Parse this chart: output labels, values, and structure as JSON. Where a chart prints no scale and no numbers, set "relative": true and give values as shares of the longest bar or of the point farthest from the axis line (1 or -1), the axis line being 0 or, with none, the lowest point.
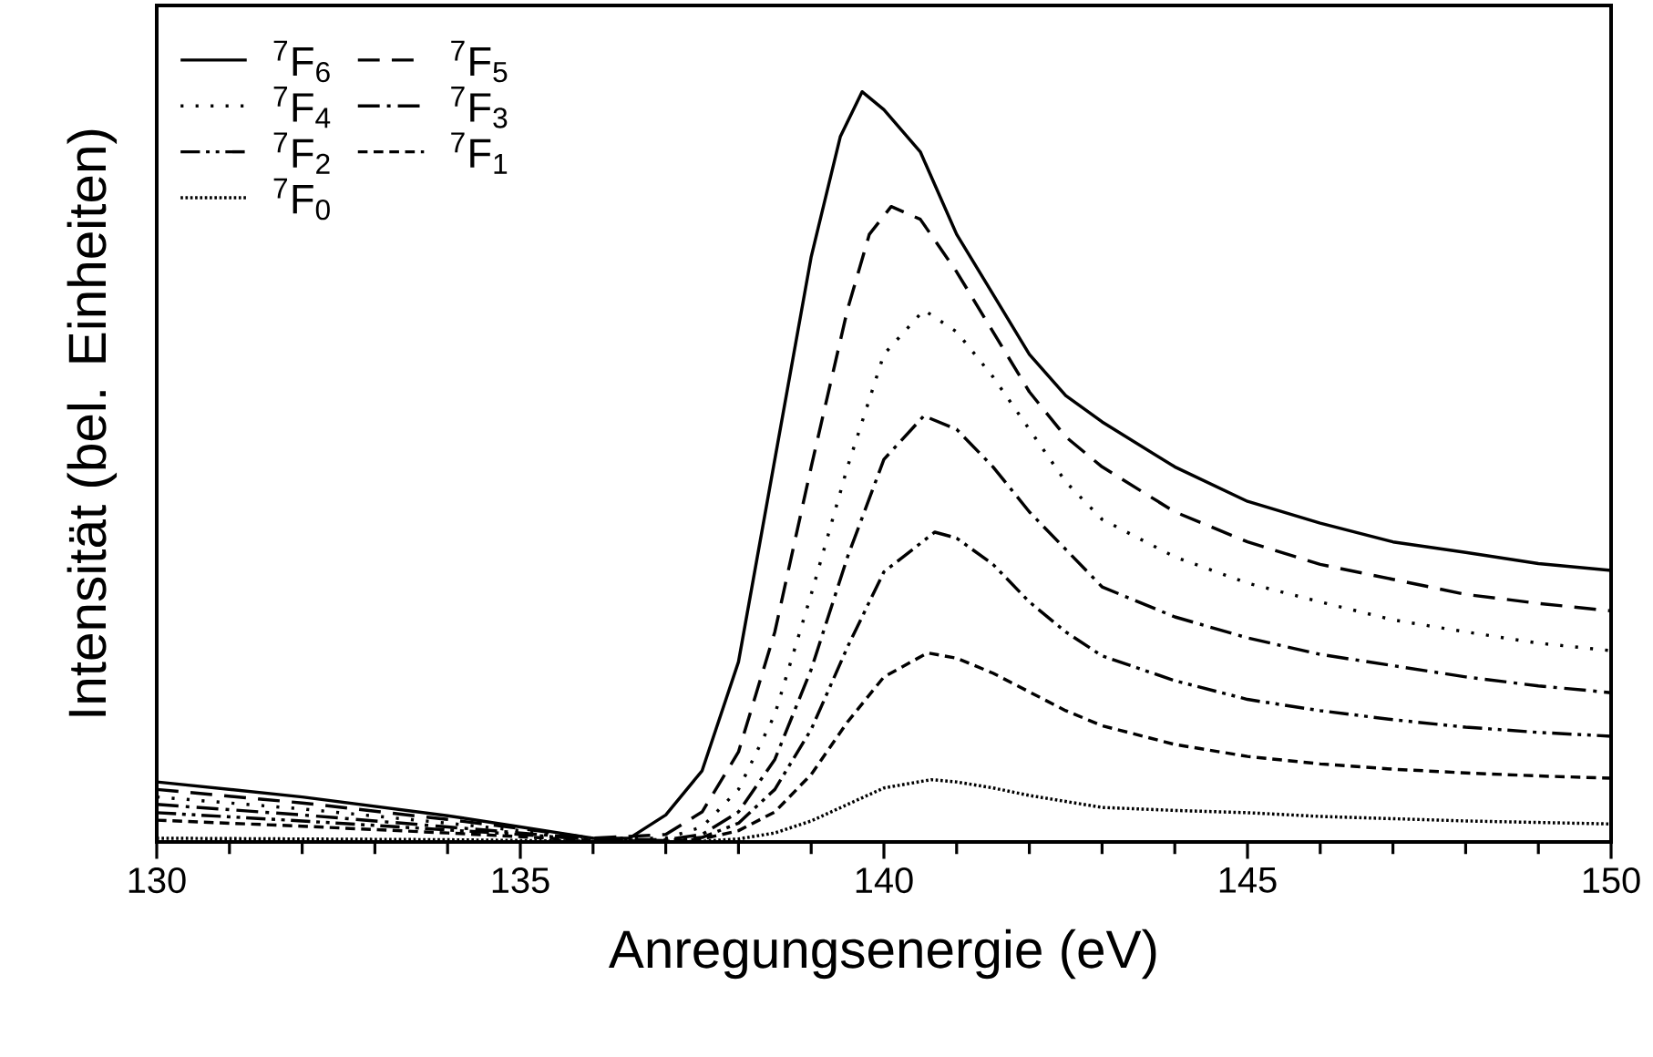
{
  "chart_data": {
    "type": "line",
    "relative": true,
    "xlabel": "Anregungsenergie (eV)",
    "ylabel": "Intensität (bel. Einheiten)",
    "xlim": [
      130,
      150
    ],
    "xticks": [
      130,
      135,
      140,
      145,
      150
    ],
    "legend": "top left",
    "grid": false,
    "marker": "none",
    "series": [
      {
        "name": "$^{7}$F$_{6}$",
        "color": "#000000",
        "line_style": "solid",
        "x": [
          130,
          132,
          134,
          135,
          136,
          136.5,
          137,
          137.5,
          138,
          138.5,
          139,
          139.4,
          139.7,
          140,
          140.5,
          141,
          141.5,
          142,
          142.5,
          143,
          144,
          145,
          146,
          147,
          148,
          149,
          150
        ],
        "values": [
          0.08,
          0.06,
          0.035,
          0.02,
          0.005,
          0.005,
          0.036,
          0.095,
          0.24,
          0.51,
          0.78,
          0.94,
          1.0,
          0.976,
          0.92,
          0.81,
          0.73,
          0.65,
          0.595,
          0.56,
          0.5,
          0.454,
          0.425,
          0.4,
          0.386,
          0.371,
          0.362
        ]
      },
      {
        "name": "$^{7}$F$_{5}$",
        "color": "#000000",
        "line_style": "dashed",
        "x": [
          130,
          132,
          134,
          135,
          136,
          137,
          137.5,
          138,
          138.5,
          139,
          139.5,
          139.8,
          140.1,
          140.5,
          141,
          141.5,
          142,
          142.5,
          143,
          144,
          145,
          146,
          147,
          148,
          149,
          150
        ],
        "values": [
          0.07,
          0.052,
          0.03,
          0.018,
          0.005,
          0.01,
          0.04,
          0.12,
          0.28,
          0.5,
          0.71,
          0.81,
          0.847,
          0.83,
          0.76,
          0.68,
          0.6,
          0.54,
          0.5,
          0.44,
          0.4,
          0.37,
          0.35,
          0.33,
          0.318,
          0.308
        ]
      },
      {
        "name": "$^{7}$F$_{4}$",
        "color": "#000000",
        "line_style": "dotted",
        "x": [
          130,
          132,
          134,
          135,
          136,
          137,
          137.5,
          138,
          138.5,
          139,
          139.5,
          140,
          140.55,
          141,
          141.5,
          142,
          142.5,
          143,
          144,
          145,
          146,
          147,
          148,
          149,
          150
        ],
        "values": [
          0.06,
          0.044,
          0.025,
          0.015,
          0.005,
          0.005,
          0.02,
          0.07,
          0.17,
          0.33,
          0.5,
          0.65,
          0.709,
          0.68,
          0.62,
          0.55,
          0.48,
          0.43,
          0.38,
          0.345,
          0.32,
          0.296,
          0.28,
          0.265,
          0.255
        ]
      },
      {
        "name": "$^{7}$F$_{3}$",
        "color": "#000000",
        "line_style": "dashdot",
        "x": [
          130,
          132,
          134,
          135,
          136,
          137,
          137.5,
          138,
          138.5,
          139,
          139.5,
          140,
          140.55,
          141,
          141.5,
          142,
          142.5,
          143,
          144,
          145,
          146,
          147,
          148,
          149,
          150
        ],
        "values": [
          0.05,
          0.036,
          0.02,
          0.012,
          0.004,
          0.003,
          0.01,
          0.04,
          0.11,
          0.23,
          0.38,
          0.51,
          0.568,
          0.55,
          0.5,
          0.44,
          0.39,
          0.34,
          0.3,
          0.272,
          0.25,
          0.235,
          0.22,
          0.208,
          0.199
        ]
      },
      {
        "name": "$^{7}$F$_{2}$",
        "color": "#000000",
        "line_style": "dashdotdot",
        "x": [
          130,
          132,
          134,
          135,
          136,
          137,
          137.5,
          138,
          138.5,
          139,
          139.5,
          140,
          140.7,
          141,
          141.5,
          142,
          142.5,
          143,
          144,
          145,
          146,
          147,
          148,
          149,
          150
        ],
        "values": [
          0.039,
          0.028,
          0.016,
          0.01,
          0.003,
          0.002,
          0.006,
          0.025,
          0.07,
          0.15,
          0.26,
          0.36,
          0.413,
          0.405,
          0.37,
          0.32,
          0.28,
          0.248,
          0.215,
          0.19,
          0.175,
          0.163,
          0.153,
          0.146,
          0.141
        ]
      },
      {
        "name": "$^{7}$F$_{1}$",
        "color": "#000000",
        "line_style": "shortdash",
        "x": [
          130,
          132,
          134,
          135,
          136,
          137,
          137.5,
          138,
          138.5,
          139,
          139.5,
          140,
          140.6,
          141,
          141.5,
          142,
          142.5,
          143,
          144,
          145,
          146,
          147,
          148,
          149,
          150
        ],
        "values": [
          0.029,
          0.021,
          0.012,
          0.007,
          0.002,
          0.001,
          0.004,
          0.015,
          0.04,
          0.09,
          0.16,
          0.22,
          0.252,
          0.245,
          0.225,
          0.2,
          0.175,
          0.155,
          0.13,
          0.114,
          0.104,
          0.097,
          0.092,
          0.088,
          0.085
        ]
      },
      {
        "name": "$^{7}$F$_{0}$",
        "color": "#000000",
        "line_style": "densedotted",
        "x": [
          130,
          132,
          134,
          136,
          137,
          137.5,
          138,
          138.5,
          139,
          139.5,
          140,
          140.65,
          141,
          141.5,
          142,
          142.5,
          143,
          144,
          145,
          146,
          147,
          148,
          149,
          150
        ],
        "values": [
          0.005,
          0.004,
          0.003,
          0.001,
          0,
          0.001,
          0.004,
          0.012,
          0.028,
          0.05,
          0.072,
          0.083,
          0.08,
          0.072,
          0.062,
          0.054,
          0.046,
          0.042,
          0.039,
          0.034,
          0.031,
          0.028,
          0.026,
          0.024
        ]
      }
    ]
  }
}
